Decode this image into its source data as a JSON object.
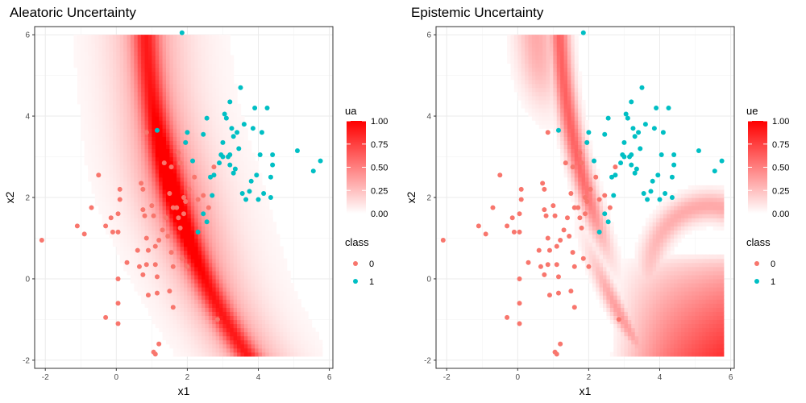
{
  "chart_data": [
    {
      "type": "scatter",
      "title": "Aleatoric Uncertainty",
      "xlabel": "x1",
      "ylabel": "x2",
      "xlim": [
        -2.3,
        6.1
      ],
      "ylim": [
        -2.2,
        6.2
      ],
      "xticks": [
        -2,
        0,
        2,
        4,
        6
      ],
      "yticks": [
        -2,
        0,
        2,
        4,
        6
      ],
      "grid": true,
      "fill_legend": {
        "title": "ua",
        "ticks": [
          "1.00",
          "0.75",
          "0.50",
          "0.25",
          "0.00"
        ],
        "low_color": "#ffffff",
        "high_color": "#ff0000"
      },
      "shape_legend": {
        "title": "class",
        "entries": [
          {
            "label": "0",
            "color": "#f8766d"
          },
          {
            "label": "1",
            "color": "#00bfc4"
          }
        ]
      },
      "surface": "aleatoric",
      "fill_region": {
        "x": [
          -1.3,
          5.8
        ],
        "y": [
          -1.9,
          6.0
        ]
      }
    },
    {
      "type": "scatter",
      "title": "Epistemic Uncertainty",
      "xlabel": "x1",
      "ylabel": "x2",
      "xlim": [
        -2.3,
        6.1
      ],
      "ylim": [
        -2.2,
        6.2
      ],
      "xticks": [
        -2,
        0,
        2,
        4,
        6
      ],
      "yticks": [
        -2,
        0,
        2,
        4,
        6
      ],
      "grid": true,
      "fill_legend": {
        "title": "ue",
        "ticks": [
          "1.00",
          "0.75",
          "0.50",
          "0.25",
          "0.00"
        ],
        "low_color": "#ffffff",
        "high_color": "#ff0000"
      },
      "shape_legend": {
        "title": "class",
        "entries": [
          {
            "label": "0",
            "color": "#f8766d"
          },
          {
            "label": "1",
            "color": "#00bfc4"
          }
        ]
      },
      "surface": "epistemic",
      "fill_region": {
        "x": [
          -1.3,
          5.8
        ],
        "y": [
          -1.9,
          6.0
        ]
      }
    }
  ],
  "points": {
    "class0": [
      [
        -2.1,
        0.95
      ],
      [
        -1.1,
        1.3
      ],
      [
        -0.9,
        1.1
      ],
      [
        -0.7,
        1.75
      ],
      [
        -0.5,
        2.55
      ],
      [
        -0.3,
        1.3
      ],
      [
        -0.15,
        1.5
      ],
      [
        -0.1,
        1.15
      ],
      [
        0.05,
        1.15
      ],
      [
        0.05,
        1.6
      ],
      [
        0.1,
        2.2
      ],
      [
        0.1,
        1.95
      ],
      [
        0.05,
        0
      ],
      [
        0.05,
        -0.6
      ],
      [
        0.05,
        -1.1
      ],
      [
        -0.3,
        -0.95
      ],
      [
        0.3,
        0.4
      ],
      [
        0.6,
        0.7
      ],
      [
        0.7,
        2.35
      ],
      [
        0.75,
        2.2
      ],
      [
        0.75,
        1.7
      ],
      [
        0.8,
        1.55
      ],
      [
        0.65,
        0.3
      ],
      [
        0.75,
        0.1
      ],
      [
        0.85,
        0.35
      ],
      [
        0.9,
        0.7
      ],
      [
        0.9,
        -0.4
      ],
      [
        0.85,
        1.0
      ],
      [
        1.0,
        1.8
      ],
      [
        1.05,
        1.55
      ],
      [
        1.1,
        0.8
      ],
      [
        1.1,
        0.35
      ],
      [
        1.15,
        0.05
      ],
      [
        1.15,
        -0.35
      ],
      [
        1.2,
        0.95
      ],
      [
        1.3,
        1.2
      ],
      [
        1.4,
        1.5
      ],
      [
        1.45,
        1.05
      ],
      [
        1.55,
        0.65
      ],
      [
        1.6,
        0.3
      ],
      [
        1.6,
        1.75
      ],
      [
        1.7,
        1.75
      ],
      [
        1.75,
        1.5
      ],
      [
        1.8,
        1.25
      ],
      [
        1.85,
        0.5
      ],
      [
        1.9,
        1.6
      ],
      [
        1.95,
        1.9
      ],
      [
        2.0,
        0.3
      ],
      [
        1.5,
        -0.3
      ],
      [
        1.6,
        -0.7
      ],
      [
        1.05,
        -1.8
      ],
      [
        1.2,
        -1.6
      ],
      [
        1.1,
        -1.85
      ],
      [
        1.35,
        2.85
      ],
      [
        1.5,
        2.1
      ],
      [
        1.75,
        3.1
      ],
      [
        1.8,
        2.85
      ],
      [
        1.95,
        3.35
      ],
      [
        1.9,
        2.0
      ],
      [
        2.05,
        2.2
      ],
      [
        2.2,
        2.5
      ],
      [
        2.3,
        1.95
      ],
      [
        2.6,
        1.75
      ],
      [
        2.75,
        2.75
      ],
      [
        2.85,
        -1.0
      ],
      [
        2.45,
        2.05
      ],
      [
        0.85,
        3.6
      ],
      [
        1.55,
        2.75
      ]
    ],
    "class1": [
      [
        1.85,
        6.05
      ],
      [
        1.15,
        3.65
      ],
      [
        1.95,
        3.35
      ],
      [
        2.0,
        3.6
      ],
      [
        2.15,
        2.9
      ],
      [
        2.45,
        3.55
      ],
      [
        2.55,
        3.95
      ],
      [
        2.95,
        3.05
      ],
      [
        2.9,
        2.85
      ],
      [
        3.0,
        3.35
      ],
      [
        3.05,
        4.05
      ],
      [
        3.1,
        3.95
      ],
      [
        3.15,
        3.0
      ],
      [
        3.2,
        4.35
      ],
      [
        3.2,
        2.8
      ],
      [
        3.25,
        3.7
      ],
      [
        3.3,
        2.6
      ],
      [
        3.3,
        3.5
      ],
      [
        3.35,
        2.7
      ],
      [
        3.4,
        3.6
      ],
      [
        3.45,
        3.2
      ],
      [
        3.5,
        4.7
      ],
      [
        3.55,
        2.1
      ],
      [
        3.6,
        3.8
      ],
      [
        3.65,
        1.95
      ],
      [
        3.75,
        2.15
      ],
      [
        3.8,
        2.4
      ],
      [
        3.85,
        3.7
      ],
      [
        3.9,
        4.2
      ],
      [
        3.95,
        2.55
      ],
      [
        4.0,
        1.95
      ],
      [
        4.05,
        3.05
      ],
      [
        4.1,
        3.6
      ],
      [
        4.15,
        2.1
      ],
      [
        4.25,
        4.2
      ],
      [
        4.35,
        2.5
      ],
      [
        4.4,
        2.8
      ],
      [
        4.4,
        3.05
      ],
      [
        4.35,
        2.0
      ],
      [
        5.1,
        3.15
      ],
      [
        5.55,
        2.65
      ],
      [
        5.75,
        2.9
      ],
      [
        2.75,
        2.55
      ],
      [
        2.7,
        2.05
      ],
      [
        2.45,
        1.6
      ],
      [
        2.3,
        1.15
      ],
      [
        2.55,
        1.4
      ],
      [
        3.2,
        3.05
      ],
      [
        2.65,
        2.5
      ],
      [
        3.0,
        3.0
      ]
    ]
  }
}
